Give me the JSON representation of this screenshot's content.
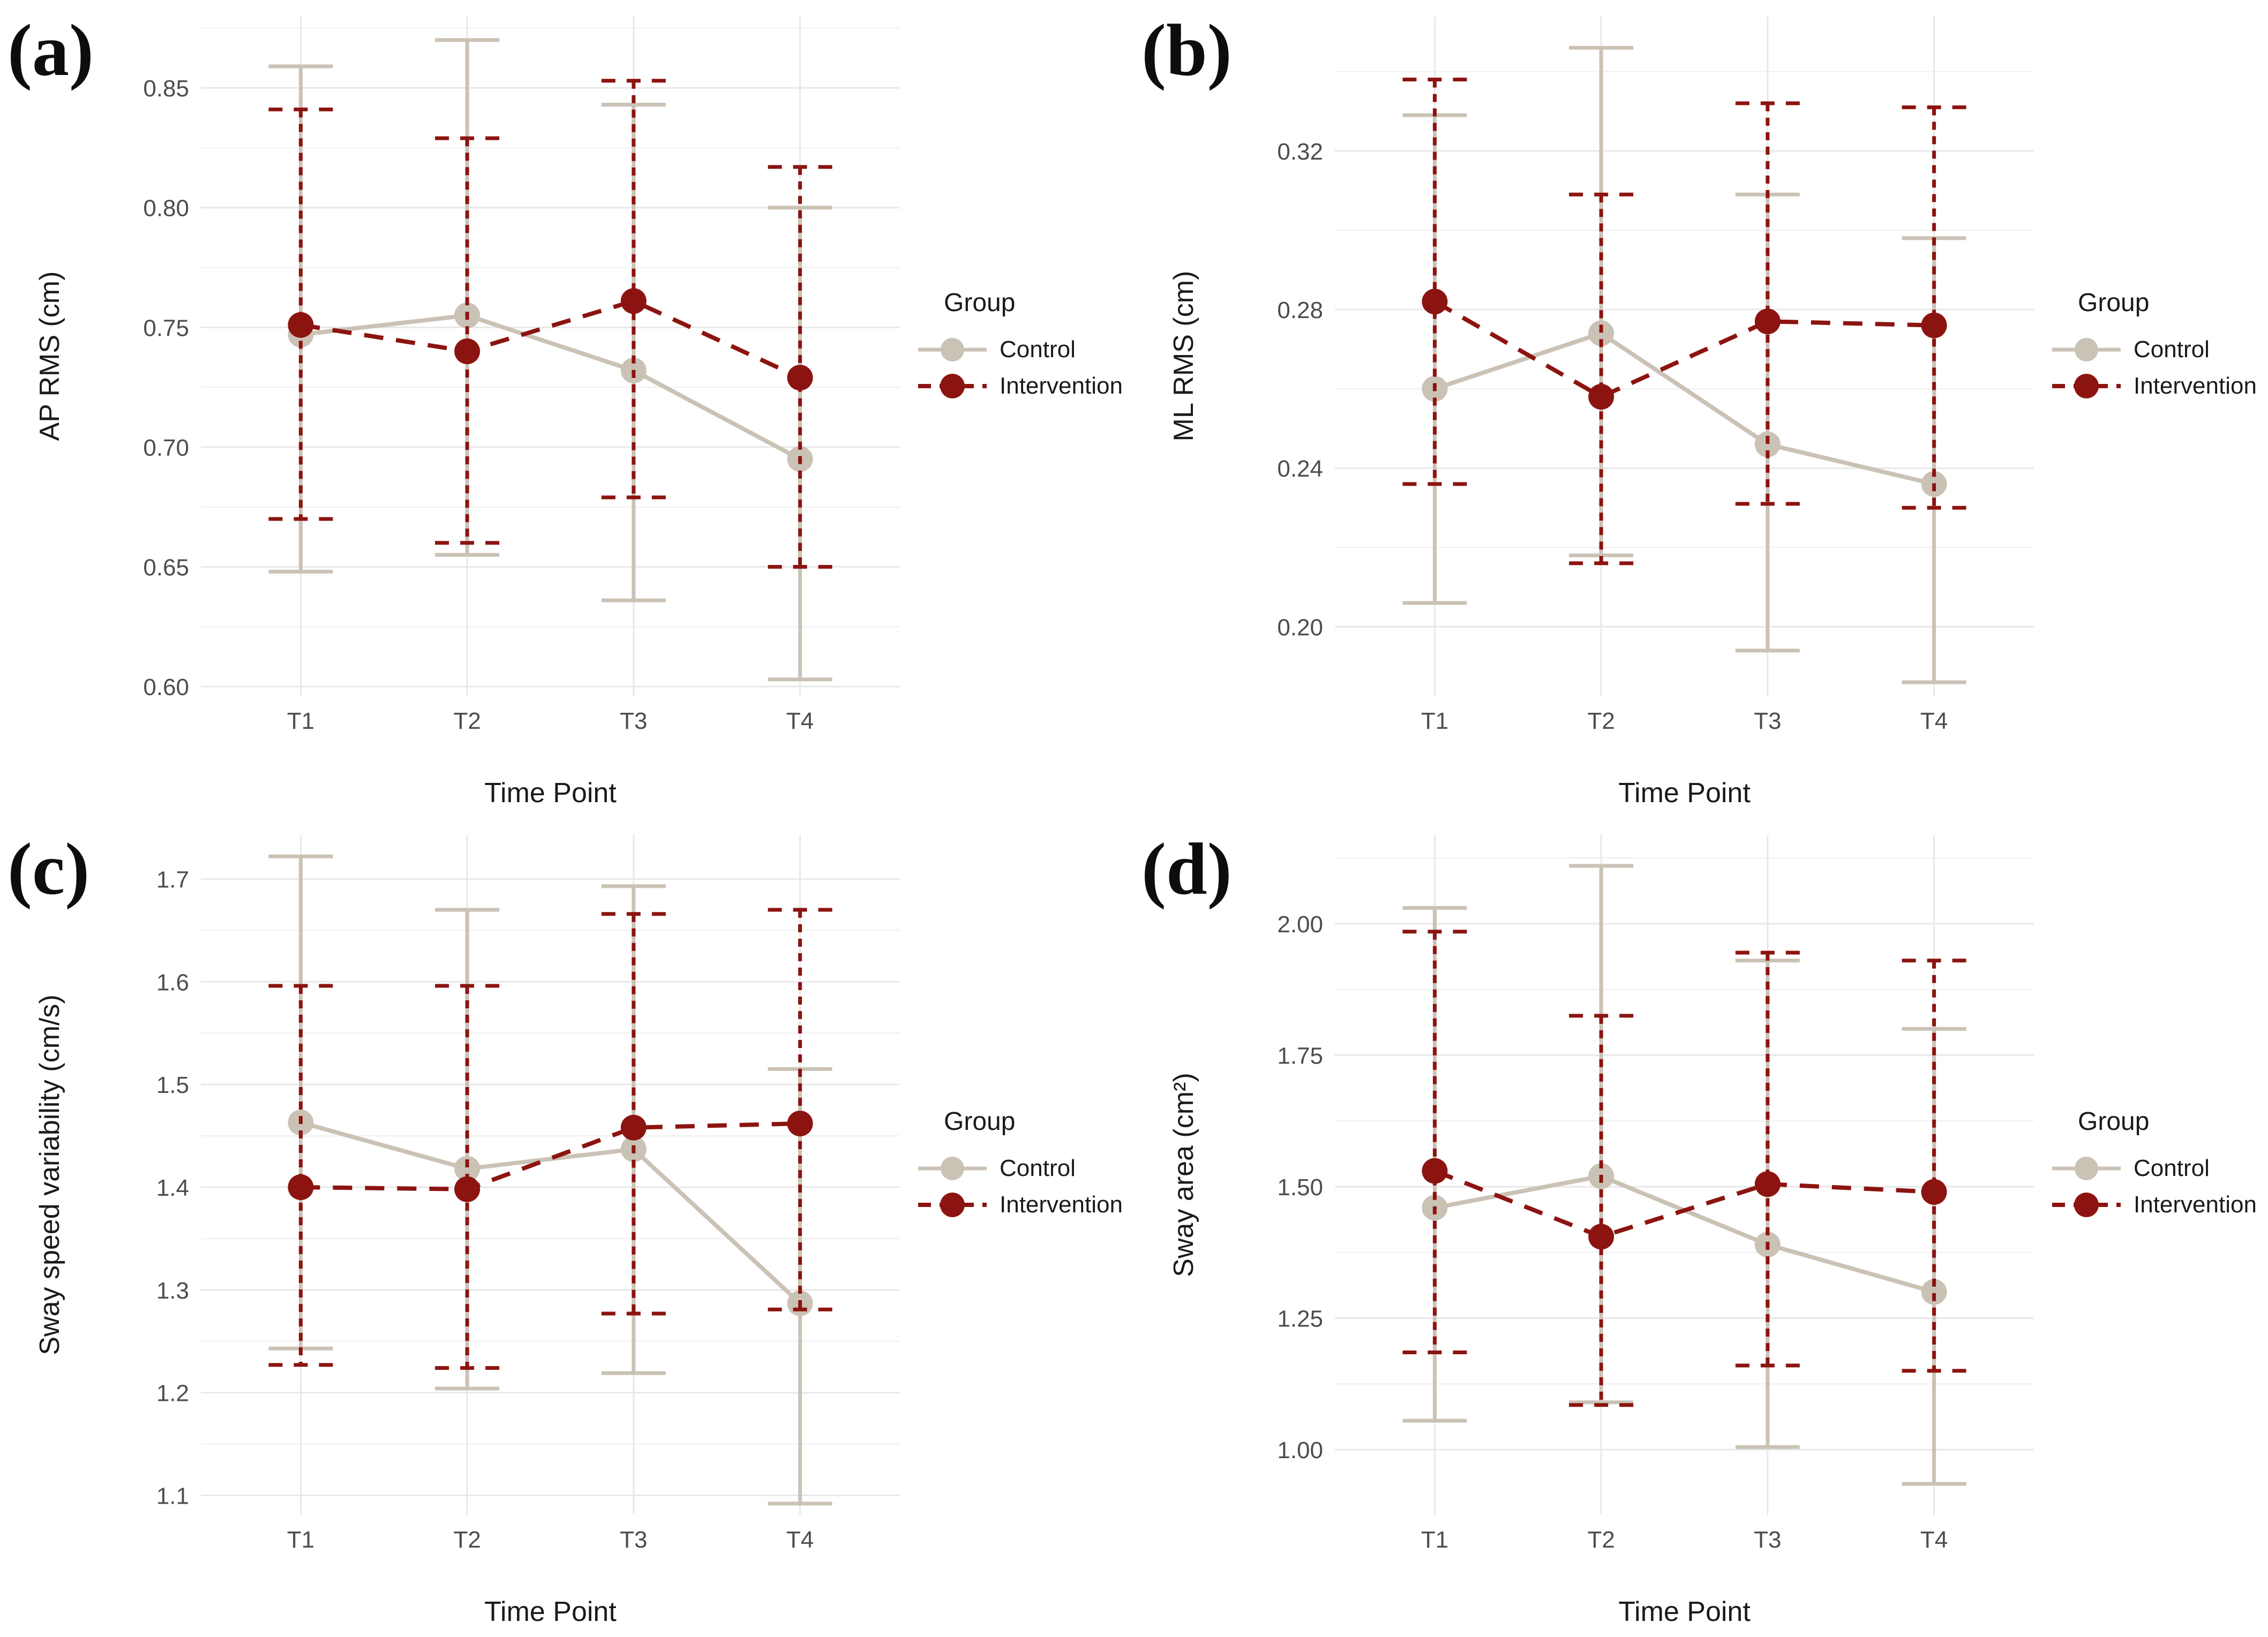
{
  "figure": {
    "background": "#FFFFFF"
  },
  "colors": {
    "control": "#CBC2B6",
    "intervention": "#8C1410",
    "grid_major": "#E8E8E8",
    "grid_minor": "#F2F2F2",
    "tick_text": "#4D4D4D",
    "title_text": "#1A1A1A"
  },
  "legend": {
    "title": "Group",
    "items": [
      {
        "label": "Control",
        "series": "control"
      },
      {
        "label": "Intervention",
        "series": "intervention"
      }
    ],
    "position": "right"
  },
  "chart_data": [
    {
      "type": "line",
      "panel_label": "(a)",
      "xlabel": "Time Point",
      "ylabel": "AP RMS (cm)",
      "categories": [
        "T1",
        "T2",
        "T3",
        "T4"
      ],
      "ylim": [
        0.596,
        0.88
      ],
      "yticks": [
        0.6,
        0.65,
        0.7,
        0.75,
        0.8,
        0.85
      ],
      "ytick_labels": [
        "0.60",
        "0.65",
        "0.70",
        "0.75",
        "0.80",
        "0.85"
      ],
      "yminor": [
        0.625,
        0.675,
        0.725,
        0.775,
        0.825,
        0.875
      ],
      "grid": true,
      "legend_position": "right",
      "series": [
        {
          "name": "Control",
          "style": "solid",
          "color_key": "control",
          "means": [
            0.747,
            0.755,
            0.732,
            0.695
          ],
          "lower": [
            0.648,
            0.655,
            0.636,
            0.603
          ],
          "upper": [
            0.859,
            0.87,
            0.843,
            0.8
          ]
        },
        {
          "name": "Intervention",
          "style": "dashed",
          "color_key": "intervention",
          "means": [
            0.751,
            0.74,
            0.761,
            0.729
          ],
          "lower": [
            0.67,
            0.66,
            0.679,
            0.65
          ],
          "upper": [
            0.841,
            0.829,
            0.853,
            0.817
          ]
        }
      ]
    },
    {
      "type": "line",
      "panel_label": "(b)",
      "xlabel": "Time Point",
      "ylabel": "ML RMS (cm)",
      "categories": [
        "T1",
        "T2",
        "T3",
        "T4"
      ],
      "ylim": [
        0.1825,
        0.354
      ],
      "yticks": [
        0.2,
        0.24,
        0.28,
        0.32
      ],
      "ytick_labels": [
        "0.20",
        "0.24",
        "0.28",
        "0.32"
      ],
      "yminor": [
        0.22,
        0.26,
        0.3,
        0.34
      ],
      "grid": true,
      "legend_position": "right",
      "series": [
        {
          "name": "Control",
          "style": "solid",
          "color_key": "control",
          "means": [
            0.26,
            0.274,
            0.246,
            0.236
          ],
          "lower": [
            0.206,
            0.218,
            0.194,
            0.186
          ],
          "upper": [
            0.329,
            0.346,
            0.309,
            0.298
          ]
        },
        {
          "name": "Intervention",
          "style": "dashed",
          "color_key": "intervention",
          "means": [
            0.282,
            0.258,
            0.277,
            0.276
          ],
          "lower": [
            0.236,
            0.216,
            0.231,
            0.23
          ],
          "upper": [
            0.338,
            0.309,
            0.332,
            0.331
          ]
        }
      ]
    },
    {
      "type": "line",
      "panel_label": "(c)",
      "xlabel": "Time Point",
      "ylabel": "Sway speed variability (cm/s)",
      "categories": [
        "T1",
        "T2",
        "T3",
        "T4"
      ],
      "ylim": [
        1.081,
        1.743
      ],
      "yticks": [
        1.1,
        1.2,
        1.3,
        1.4,
        1.5,
        1.6,
        1.7
      ],
      "ytick_labels": [
        "1.1",
        "1.2",
        "1.3",
        "1.4",
        "1.5",
        "1.6",
        "1.7"
      ],
      "yminor": [
        1.15,
        1.25,
        1.35,
        1.45,
        1.55,
        1.65
      ],
      "grid": true,
      "legend_position": "right",
      "series": [
        {
          "name": "Control",
          "style": "solid",
          "color_key": "control",
          "means": [
            1.463,
            1.418,
            1.437,
            1.287
          ],
          "lower": [
            1.243,
            1.204,
            1.219,
            1.092
          ],
          "upper": [
            1.722,
            1.67,
            1.693,
            1.515
          ]
        },
        {
          "name": "Intervention",
          "style": "dashed",
          "color_key": "intervention",
          "means": [
            1.4,
            1.398,
            1.458,
            1.462
          ],
          "lower": [
            1.227,
            1.224,
            1.277,
            1.281
          ],
          "upper": [
            1.596,
            1.596,
            1.666,
            1.67
          ]
        }
      ]
    },
    {
      "type": "line",
      "panel_label": "(d)",
      "xlabel": "Time Point",
      "ylabel": "Sway area  (cm²)",
      "categories": [
        "T1",
        "T2",
        "T3",
        "T4"
      ],
      "ylim": [
        0.876,
        2.169
      ],
      "yticks": [
        1.0,
        1.25,
        1.5,
        1.75,
        2.0
      ],
      "ytick_labels": [
        "1.00",
        "1.25",
        "1.50",
        "1.75",
        "2.00"
      ],
      "yminor": [
        1.125,
        1.375,
        1.625,
        1.875,
        2.125
      ],
      "grid": true,
      "legend_position": "right",
      "series": [
        {
          "name": "Control",
          "style": "solid",
          "color_key": "control",
          "means": [
            1.46,
            1.52,
            1.39,
            1.3
          ],
          "lower": [
            1.055,
            1.09,
            1.005,
            0.935
          ],
          "upper": [
            2.03,
            2.11,
            1.93,
            1.8
          ]
        },
        {
          "name": "Intervention",
          "style": "dashed",
          "color_key": "intervention",
          "means": [
            1.53,
            1.405,
            1.505,
            1.49
          ],
          "lower": [
            1.185,
            1.085,
            1.16,
            1.15
          ],
          "upper": [
            1.985,
            1.825,
            1.945,
            1.93
          ]
        }
      ]
    }
  ]
}
